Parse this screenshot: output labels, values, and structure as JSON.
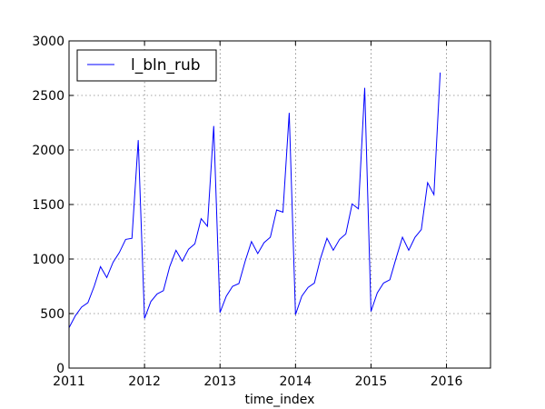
{
  "chart_data": {
    "type": "line",
    "title": "",
    "xlabel": "time_index",
    "ylabel": "",
    "xlim": [
      2011.0,
      2016.583
    ],
    "ylim": [
      0,
      3000
    ],
    "grid": true,
    "legend_position": "top-left",
    "x_tick_labels": [
      "2011",
      "2012",
      "2013",
      "2014",
      "2015",
      "2016"
    ],
    "x_tick_values": [
      2011,
      2012,
      2013,
      2014,
      2015,
      2016
    ],
    "y_tick_values": [
      0,
      500,
      1000,
      1500,
      2000,
      2500,
      3000
    ],
    "y_tick_labels": [
      "0",
      "500",
      "1000",
      "1500",
      "2000",
      "2500",
      "3000"
    ],
    "series": [
      {
        "name": "l_bln_rub",
        "color": "#0000ff",
        "x_start": 2011.0,
        "x_step_months": 1,
        "values": [
          370,
          480,
          560,
          600,
          750,
          930,
          830,
          970,
          1060,
          1180,
          1190,
          2090,
          455,
          610,
          680,
          710,
          930,
          1080,
          980,
          1090,
          1140,
          1370,
          1300,
          2220,
          510,
          660,
          750,
          775,
          980,
          1160,
          1050,
          1150,
          1200,
          1450,
          1430,
          2340,
          490,
          660,
          740,
          780,
          1010,
          1190,
          1080,
          1180,
          1230,
          1505,
          1460,
          2570,
          520,
          690,
          780,
          810,
          1010,
          1200,
          1080,
          1200,
          1270,
          1700,
          1590,
          2710
        ]
      }
    ]
  }
}
